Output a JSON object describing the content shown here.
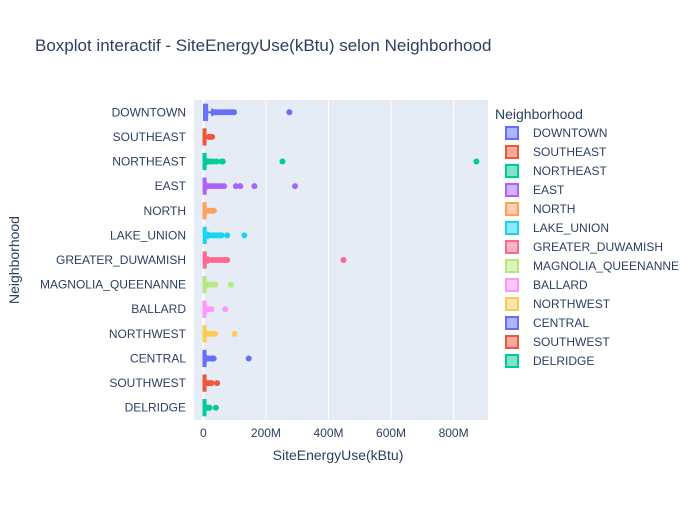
{
  "chart_data": {
    "type": "box",
    "title": "Boxplot interactif - SiteEnergyUse(kBtu) selon Neighborhood",
    "xlabel": "SiteEnergyUse(kBtu)",
    "ylabel": "Neighborhood",
    "xlim": [
      -30000000,
      910000000
    ],
    "x_ticks": [
      0,
      200000000,
      400000000,
      600000000,
      800000000
    ],
    "x_tick_labels": [
      "0",
      "200M",
      "400M",
      "600M",
      "800M"
    ],
    "grid": true,
    "legend": {
      "title": "Neighborhood",
      "position": "right"
    },
    "colors": {
      "plot_bg": "#e5ecf6",
      "grid": "#ffffff",
      "text": "#2a3f5f"
    },
    "series": [
      {
        "name": "DOWNTOWN",
        "color": "#636efa",
        "box": [
          0,
          2000000,
          4500000,
          12000000,
          28000000
        ],
        "outliers": [
          32000000,
          38000000,
          45000000,
          52000000,
          60000000,
          68000000,
          76000000,
          84000000,
          92000000,
          98000000,
          275000000
        ]
      },
      {
        "name": "SOUTHEAST",
        "color": "#EF553B",
        "box": [
          0,
          500000,
          1000000,
          3000000,
          7000000
        ],
        "outliers": [
          18000000,
          24000000,
          28000000
        ]
      },
      {
        "name": "NORTHEAST",
        "color": "#00cc96",
        "box": [
          0,
          600000,
          1300000,
          4000000,
          9000000
        ],
        "outliers": [
          15000000,
          22000000,
          30000000,
          42000000,
          58000000,
          62000000,
          253000000,
          873000000
        ]
      },
      {
        "name": "EAST",
        "color": "#ab63fa",
        "box": [
          0,
          700000,
          1600000,
          4500000,
          10000000
        ],
        "outliers": [
          18000000,
          28000000,
          38000000,
          48000000,
          58000000,
          66000000,
          104000000,
          118000000,
          163000000,
          293000000
        ]
      },
      {
        "name": "NORTH",
        "color": "#FFA15A",
        "box": [
          0,
          500000,
          1100000,
          3500000,
          8000000
        ],
        "outliers": [
          16000000,
          24000000,
          30000000,
          33000000
        ]
      },
      {
        "name": "LAKE_UNION",
        "color": "#19d3f3",
        "box": [
          0,
          900000,
          2200000,
          6500000,
          14000000
        ],
        "outliers": [
          20000000,
          28000000,
          36000000,
          44000000,
          52000000,
          58000000,
          76000000,
          131000000
        ]
      },
      {
        "name": "GREATER_DUWAMISH",
        "color": "#FF6692",
        "box": [
          0,
          900000,
          2000000,
          6000000,
          14000000
        ],
        "outliers": [
          20000000,
          28000000,
          36000000,
          44000000,
          52000000,
          60000000,
          68000000,
          76000000,
          448000000
        ]
      },
      {
        "name": "MAGNOLIA_QUEENANNE",
        "color": "#B6E880",
        "box": [
          0,
          600000,
          1300000,
          4000000,
          9000000
        ],
        "outliers": [
          15000000,
          22000000,
          30000000,
          38000000,
          88000000
        ]
      },
      {
        "name": "BALLARD",
        "color": "#FF97FF",
        "box": [
          0,
          500000,
          1100000,
          3500000,
          8000000
        ],
        "outliers": [
          14000000,
          20000000,
          26000000,
          70000000
        ]
      },
      {
        "name": "NORTHWEST",
        "color": "#FECB52",
        "box": [
          0,
          500000,
          1100000,
          3500000,
          8000000
        ],
        "outliers": [
          14000000,
          22000000,
          30000000,
          38000000,
          100000000
        ]
      },
      {
        "name": "CENTRAL",
        "color": "#636efa",
        "box": [
          0,
          500000,
          1100000,
          3500000,
          8000000
        ],
        "outliers": [
          14000000,
          22000000,
          28000000,
          33000000,
          145000000
        ]
      },
      {
        "name": "SOUTHWEST",
        "color": "#EF553B",
        "box": [
          0,
          500000,
          1000000,
          3000000,
          7000000
        ],
        "outliers": [
          14000000,
          20000000,
          26000000,
          44000000
        ]
      },
      {
        "name": "DELRIDGE",
        "color": "#00cc96",
        "box": [
          0,
          400000,
          900000,
          2500000,
          6000000
        ],
        "outliers": [
          12000000,
          16000000,
          20000000,
          40000000
        ]
      }
    ]
  }
}
